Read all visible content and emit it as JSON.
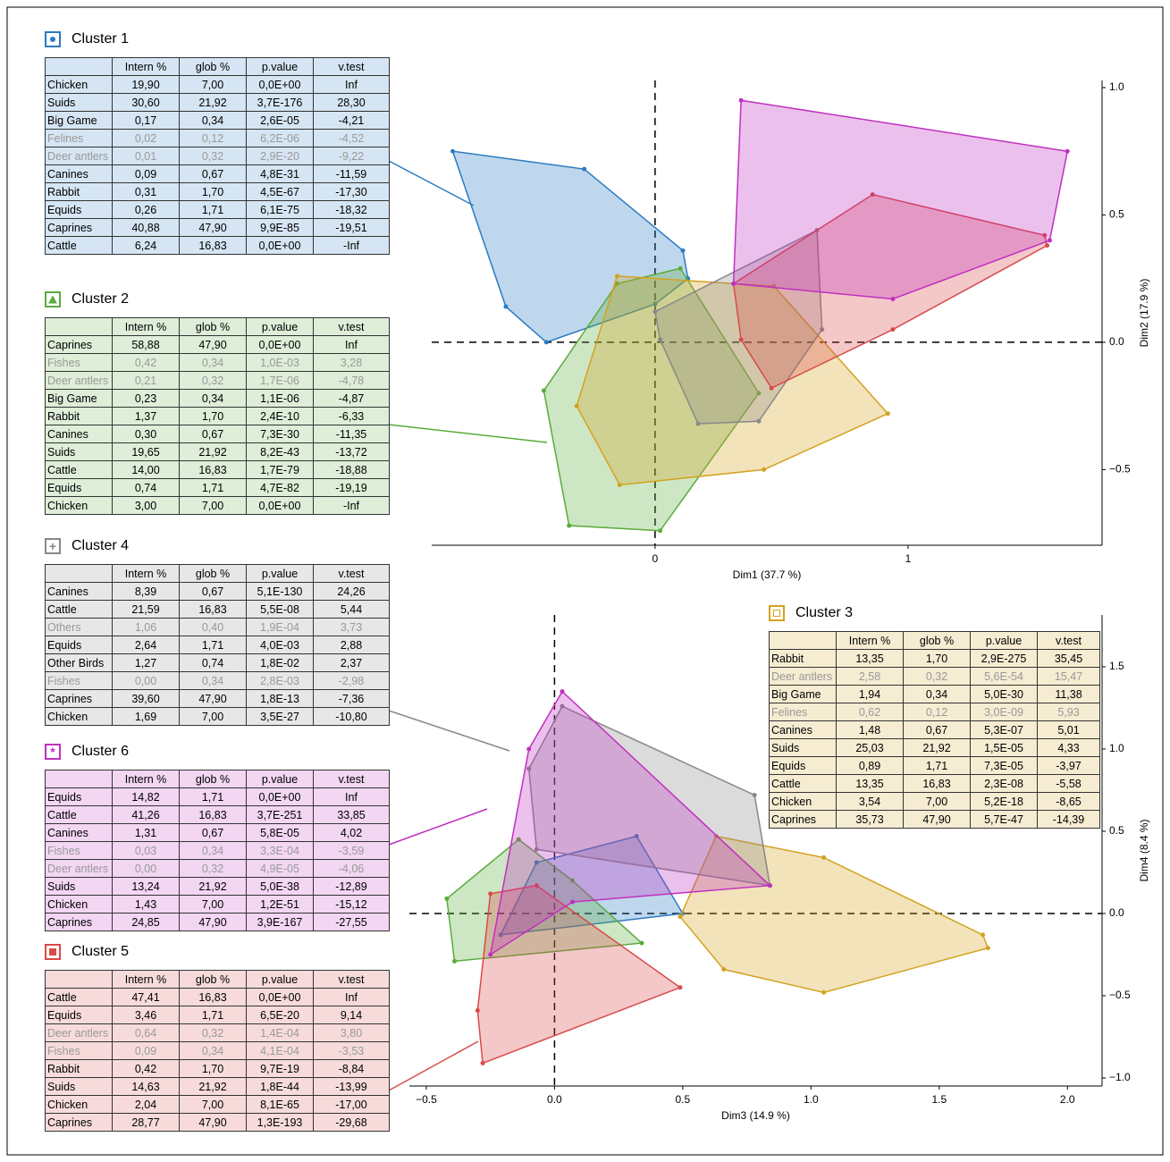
{
  "tables": [
    {
      "title": "Cluster 1",
      "color": "#2b7bc2",
      "marker": "circle",
      "columns": [
        "Intern %",
        "glob %",
        "p.value",
        "v.test"
      ],
      "muted": [
        3,
        4
      ],
      "rows": [
        [
          "Chicken",
          "19,90",
          "7,00",
          "0,0E+00",
          "Inf"
        ],
        [
          "Suids",
          "30,60",
          "21,92",
          "3,7E-176",
          "28,30"
        ],
        [
          "Big Game",
          "0,17",
          "0,34",
          "2,6E-05",
          "-4,21"
        ],
        [
          "Felines",
          "0,02",
          "0,12",
          "6,2E-06",
          "-4,52"
        ],
        [
          "Deer antlers",
          "0,01",
          "0,32",
          "2,9E-20",
          "-9,22"
        ],
        [
          "Canines",
          "0,09",
          "0,67",
          "4,8E-31",
          "-11,59"
        ],
        [
          "Rabbit",
          "0,31",
          "1,70",
          "4,5E-67",
          "-17,30"
        ],
        [
          "Equids",
          "0,26",
          "1,71",
          "6,1E-75",
          "-18,32"
        ],
        [
          "Caprines",
          "40,88",
          "47,90",
          "9,9E-85",
          "-19,51"
        ],
        [
          "Cattle",
          "6,24",
          "16,83",
          "0,0E+00",
          "-Inf"
        ]
      ]
    },
    {
      "title": "Cluster 2",
      "color": "#5aab3c",
      "marker": "triangle",
      "columns": [
        "Intern %",
        "glob %",
        "p.value",
        "v.test"
      ],
      "muted": [
        1,
        2
      ],
      "rows": [
        [
          "Caprines",
          "58,88",
          "47,90",
          "0,0E+00",
          "Inf"
        ],
        [
          "Fishes",
          "0,42",
          "0,34",
          "1,0E-03",
          "3,28"
        ],
        [
          "Deer antlers",
          "0,21",
          "0,32",
          "1,7E-06",
          "-4,78"
        ],
        [
          "Big Game",
          "0,23",
          "0,34",
          "1,1E-06",
          "-4,87"
        ],
        [
          "Rabbit",
          "1,37",
          "1,70",
          "2,4E-10",
          "-6,33"
        ],
        [
          "Canines",
          "0,30",
          "0,67",
          "7,3E-30",
          "-11,35"
        ],
        [
          "Suids",
          "19,65",
          "21,92",
          "8,2E-43",
          "-13,72"
        ],
        [
          "Cattle",
          "14,00",
          "16,83",
          "1,7E-79",
          "-18,88"
        ],
        [
          "Equids",
          "0,74",
          "1,71",
          "4,7E-82",
          "-19,19"
        ],
        [
          "Chicken",
          "3,00",
          "7,00",
          "0,0E+00",
          "-Inf"
        ]
      ]
    },
    {
      "title": "Cluster 4",
      "color": "#888888",
      "marker": "plus",
      "columns": [
        "Intern %",
        "glob %",
        "p.value",
        "v.test"
      ],
      "muted": [
        2,
        5
      ],
      "rows": [
        [
          "Canines",
          "8,39",
          "0,67",
          "5,1E-130",
          "24,26"
        ],
        [
          "Cattle",
          "21,59",
          "16,83",
          "5,5E-08",
          "5,44"
        ],
        [
          "Others",
          "1,06",
          "0,40",
          "1,9E-04",
          "3,73"
        ],
        [
          "Equids",
          "2,64",
          "1,71",
          "4,0E-03",
          "2,88"
        ],
        [
          "Other Birds",
          "1,27",
          "0,74",
          "1,8E-02",
          "2,37"
        ],
        [
          "Fishes",
          "0,00",
          "0,34",
          "2,8E-03",
          "-2,98"
        ],
        [
          "Caprines",
          "39,60",
          "47,90",
          "1,8E-13",
          "-7,36"
        ],
        [
          "Chicken",
          "1,69",
          "7,00",
          "3,5E-27",
          "-10,80"
        ]
      ]
    },
    {
      "title": "Cluster 6",
      "color": "#c030c0",
      "marker": "asterisk",
      "columns": [
        "Intern %",
        "glob %",
        "p.value",
        "v.test"
      ],
      "muted": [
        3,
        4
      ],
      "rows": [
        [
          "Equids",
          "14,82",
          "1,71",
          "0,0E+00",
          "Inf"
        ],
        [
          "Cattle",
          "41,26",
          "16,83",
          "3,7E-251",
          "33,85"
        ],
        [
          "Canines",
          "1,31",
          "0,67",
          "5,8E-05",
          "4,02"
        ],
        [
          "Fishes",
          "0,03",
          "0,34",
          "3,3E-04",
          "-3,59"
        ],
        [
          "Deer antlers",
          "0,00",
          "0,32",
          "4,9E-05",
          "-4,06"
        ],
        [
          "Suids",
          "13,24",
          "21,92",
          "5,0E-38",
          "-12,89"
        ],
        [
          "Chicken",
          "1,43",
          "7,00",
          "1,2E-51",
          "-15,12"
        ],
        [
          "Caprines",
          "24,85",
          "47,90",
          "3,9E-167",
          "-27,55"
        ]
      ]
    },
    {
      "title": "Cluster 5",
      "color": "#d94a4a",
      "marker": "square",
      "columns": [
        "Intern %",
        "glob %",
        "p.value",
        "v.test"
      ],
      "muted": [
        2,
        3
      ],
      "rows": [
        [
          "Cattle",
          "47,41",
          "16,83",
          "0,0E+00",
          "Inf"
        ],
        [
          "Equids",
          "3,46",
          "1,71",
          "6,5E-20",
          "9,14"
        ],
        [
          "Deer antlers",
          "0,64",
          "0,32",
          "1,4E-04",
          "3,80"
        ],
        [
          "Fishes",
          "0,09",
          "0,34",
          "4,1E-04",
          "-3,53"
        ],
        [
          "Rabbit",
          "0,42",
          "1,70",
          "9,7E-19",
          "-8,84"
        ],
        [
          "Suids",
          "14,63",
          "21,92",
          "1,8E-44",
          "-13,99"
        ],
        [
          "Chicken",
          "2,04",
          "7,00",
          "8,1E-65",
          "-17,00"
        ],
        [
          "Caprines",
          "28,77",
          "47,90",
          "1,3E-193",
          "-29,68"
        ]
      ]
    },
    {
      "title": "Cluster 3",
      "color": "#d4a21f",
      "marker": "square-open",
      "columns": [
        "Intern %",
        "glob %",
        "p.value",
        "v.test"
      ],
      "muted": [
        1,
        3
      ],
      "rows": [
        [
          "Rabbit",
          "13,35",
          "1,70",
          "2,9E-275",
          "35,45"
        ],
        [
          "Deer antlers",
          "2,58",
          "0,32",
          "5,6E-54",
          "15,47"
        ],
        [
          "Big Game",
          "1,94",
          "0,34",
          "5,0E-30",
          "11,38"
        ],
        [
          "Felines",
          "0,62",
          "0,12",
          "3,0E-09",
          "5,93"
        ],
        [
          "Canines",
          "1,48",
          "0,67",
          "5,3E-07",
          "5,01"
        ],
        [
          "Suids",
          "25,03",
          "21,92",
          "1,5E-05",
          "4,33"
        ],
        [
          "Equids",
          "0,89",
          "1,71",
          "7,3E-05",
          "-3,97"
        ],
        [
          "Cattle",
          "13,35",
          "16,83",
          "2,3E-08",
          "-5,58"
        ],
        [
          "Chicken",
          "3,54",
          "7,00",
          "5,2E-18",
          "-8,65"
        ],
        [
          "Caprines",
          "35,73",
          "47,90",
          "5,7E-47",
          "-14,39"
        ]
      ]
    }
  ],
  "chart_data": [
    {
      "type": "scatter",
      "xlabel": "Dim1 (37.7 %)",
      "ylabel": "Dim2 (17.9 %)",
      "xlim": [
        -0.883,
        1.767
      ],
      "ylim": [
        -0.797,
        1.028
      ],
      "xticks": [
        0,
        1
      ],
      "yticks": [
        {
          "value": -0.5,
          "label": "−0.5"
        },
        {
          "value": 0,
          "label": "0.0"
        },
        {
          "value": 0.5,
          "label": "0.5"
        },
        {
          "value": 1,
          "label": "1.0"
        }
      ],
      "series": [
        {
          "color": "#2b7bc2",
          "x": [
            -0.8,
            -0.28,
            0.11,
            0.13,
            0.0,
            -0.43,
            -0.59
          ],
          "y": [
            0.75,
            0.68,
            0.36,
            0.25,
            0.15,
            0.0,
            0.14
          ]
        },
        {
          "color": "#5aab3c",
          "x": [
            -0.44,
            -0.15,
            0.1,
            0.41,
            0.02,
            -0.34
          ],
          "y": [
            -0.19,
            0.23,
            0.29,
            -0.2,
            -0.74,
            -0.72
          ]
        },
        {
          "color": "#d4a21f",
          "x": [
            -0.15,
            0.47,
            0.92,
            0.43,
            -0.14,
            -0.31
          ],
          "y": [
            0.26,
            0.22,
            -0.28,
            -0.5,
            -0.56,
            -0.25
          ]
        },
        {
          "color": "#888888",
          "x": [
            0.0,
            0.64,
            0.66,
            0.41,
            0.17,
            0.02
          ],
          "y": [
            0.12,
            0.44,
            0.05,
            -0.31,
            -0.32,
            0.01
          ]
        },
        {
          "color": "#d94a4a",
          "x": [
            0.31,
            0.86,
            1.54,
            1.55,
            0.94,
            0.46,
            0.34
          ],
          "y": [
            0.23,
            0.58,
            0.42,
            0.38,
            0.05,
            -0.18,
            0.01
          ]
        },
        {
          "color": "#c030c0",
          "x": [
            0.34,
            1.63,
            1.56,
            0.94,
            0.31
          ],
          "y": [
            0.95,
            0.75,
            0.4,
            0.17,
            0.23
          ]
        }
      ]
    },
    {
      "type": "scatter",
      "xlabel": "Dim3 (14.9 %)",
      "ylabel": "Dim4 (8.4 %)",
      "xlim": [
        -0.566,
        2.135
      ],
      "ylim": [
        -1.049,
        1.815
      ],
      "xticks": [
        {
          "value": -0.5,
          "label": "−0.5"
        },
        {
          "value": 0,
          "label": "0.0"
        },
        0.5,
        {
          "value": 1,
          "label": "1.0"
        },
        1.5,
        {
          "value": 2,
          "label": "2.0"
        }
      ],
      "yticks": [
        {
          "value": -1,
          "label": "−1.0"
        },
        {
          "value": -0.5,
          "label": "−0.5"
        },
        {
          "value": 0,
          "label": "0.0"
        },
        0.5,
        {
          "value": 1,
          "label": "1.0"
        },
        1.5
      ],
      "series": [
        {
          "color": "#2b7bc2",
          "x": [
            -0.07,
            0.32,
            0.5,
            -0.21
          ],
          "y": [
            0.31,
            0.47,
            0.0,
            -0.13
          ]
        },
        {
          "color": "#5aab3c",
          "x": [
            -0.42,
            -0.14,
            0.07,
            0.34,
            -0.39
          ],
          "y": [
            0.09,
            0.45,
            0.2,
            -0.18,
            -0.29
          ]
        },
        {
          "color": "#d4a21f",
          "x": [
            0.63,
            1.05,
            1.67,
            1.69,
            1.05,
            0.66,
            0.49
          ],
          "y": [
            0.47,
            0.34,
            -0.13,
            -0.21,
            -0.48,
            -0.34,
            -0.02
          ]
        },
        {
          "color": "#888888",
          "x": [
            -0.1,
            0.03,
            0.78,
            0.84,
            -0.07
          ],
          "y": [
            0.88,
            1.26,
            0.72,
            0.17,
            0.39
          ]
        },
        {
          "color": "#d94a4a",
          "x": [
            -0.25,
            -0.07,
            0.49,
            -0.28,
            -0.3
          ],
          "y": [
            0.12,
            0.17,
            -0.45,
            -0.91,
            -0.59
          ]
        },
        {
          "color": "#c030c0",
          "x": [
            -0.1,
            0.03,
            0.84,
            0.07,
            -0.25
          ],
          "y": [
            1.0,
            1.35,
            0.17,
            0.07,
            -0.25
          ]
        }
      ]
    }
  ]
}
